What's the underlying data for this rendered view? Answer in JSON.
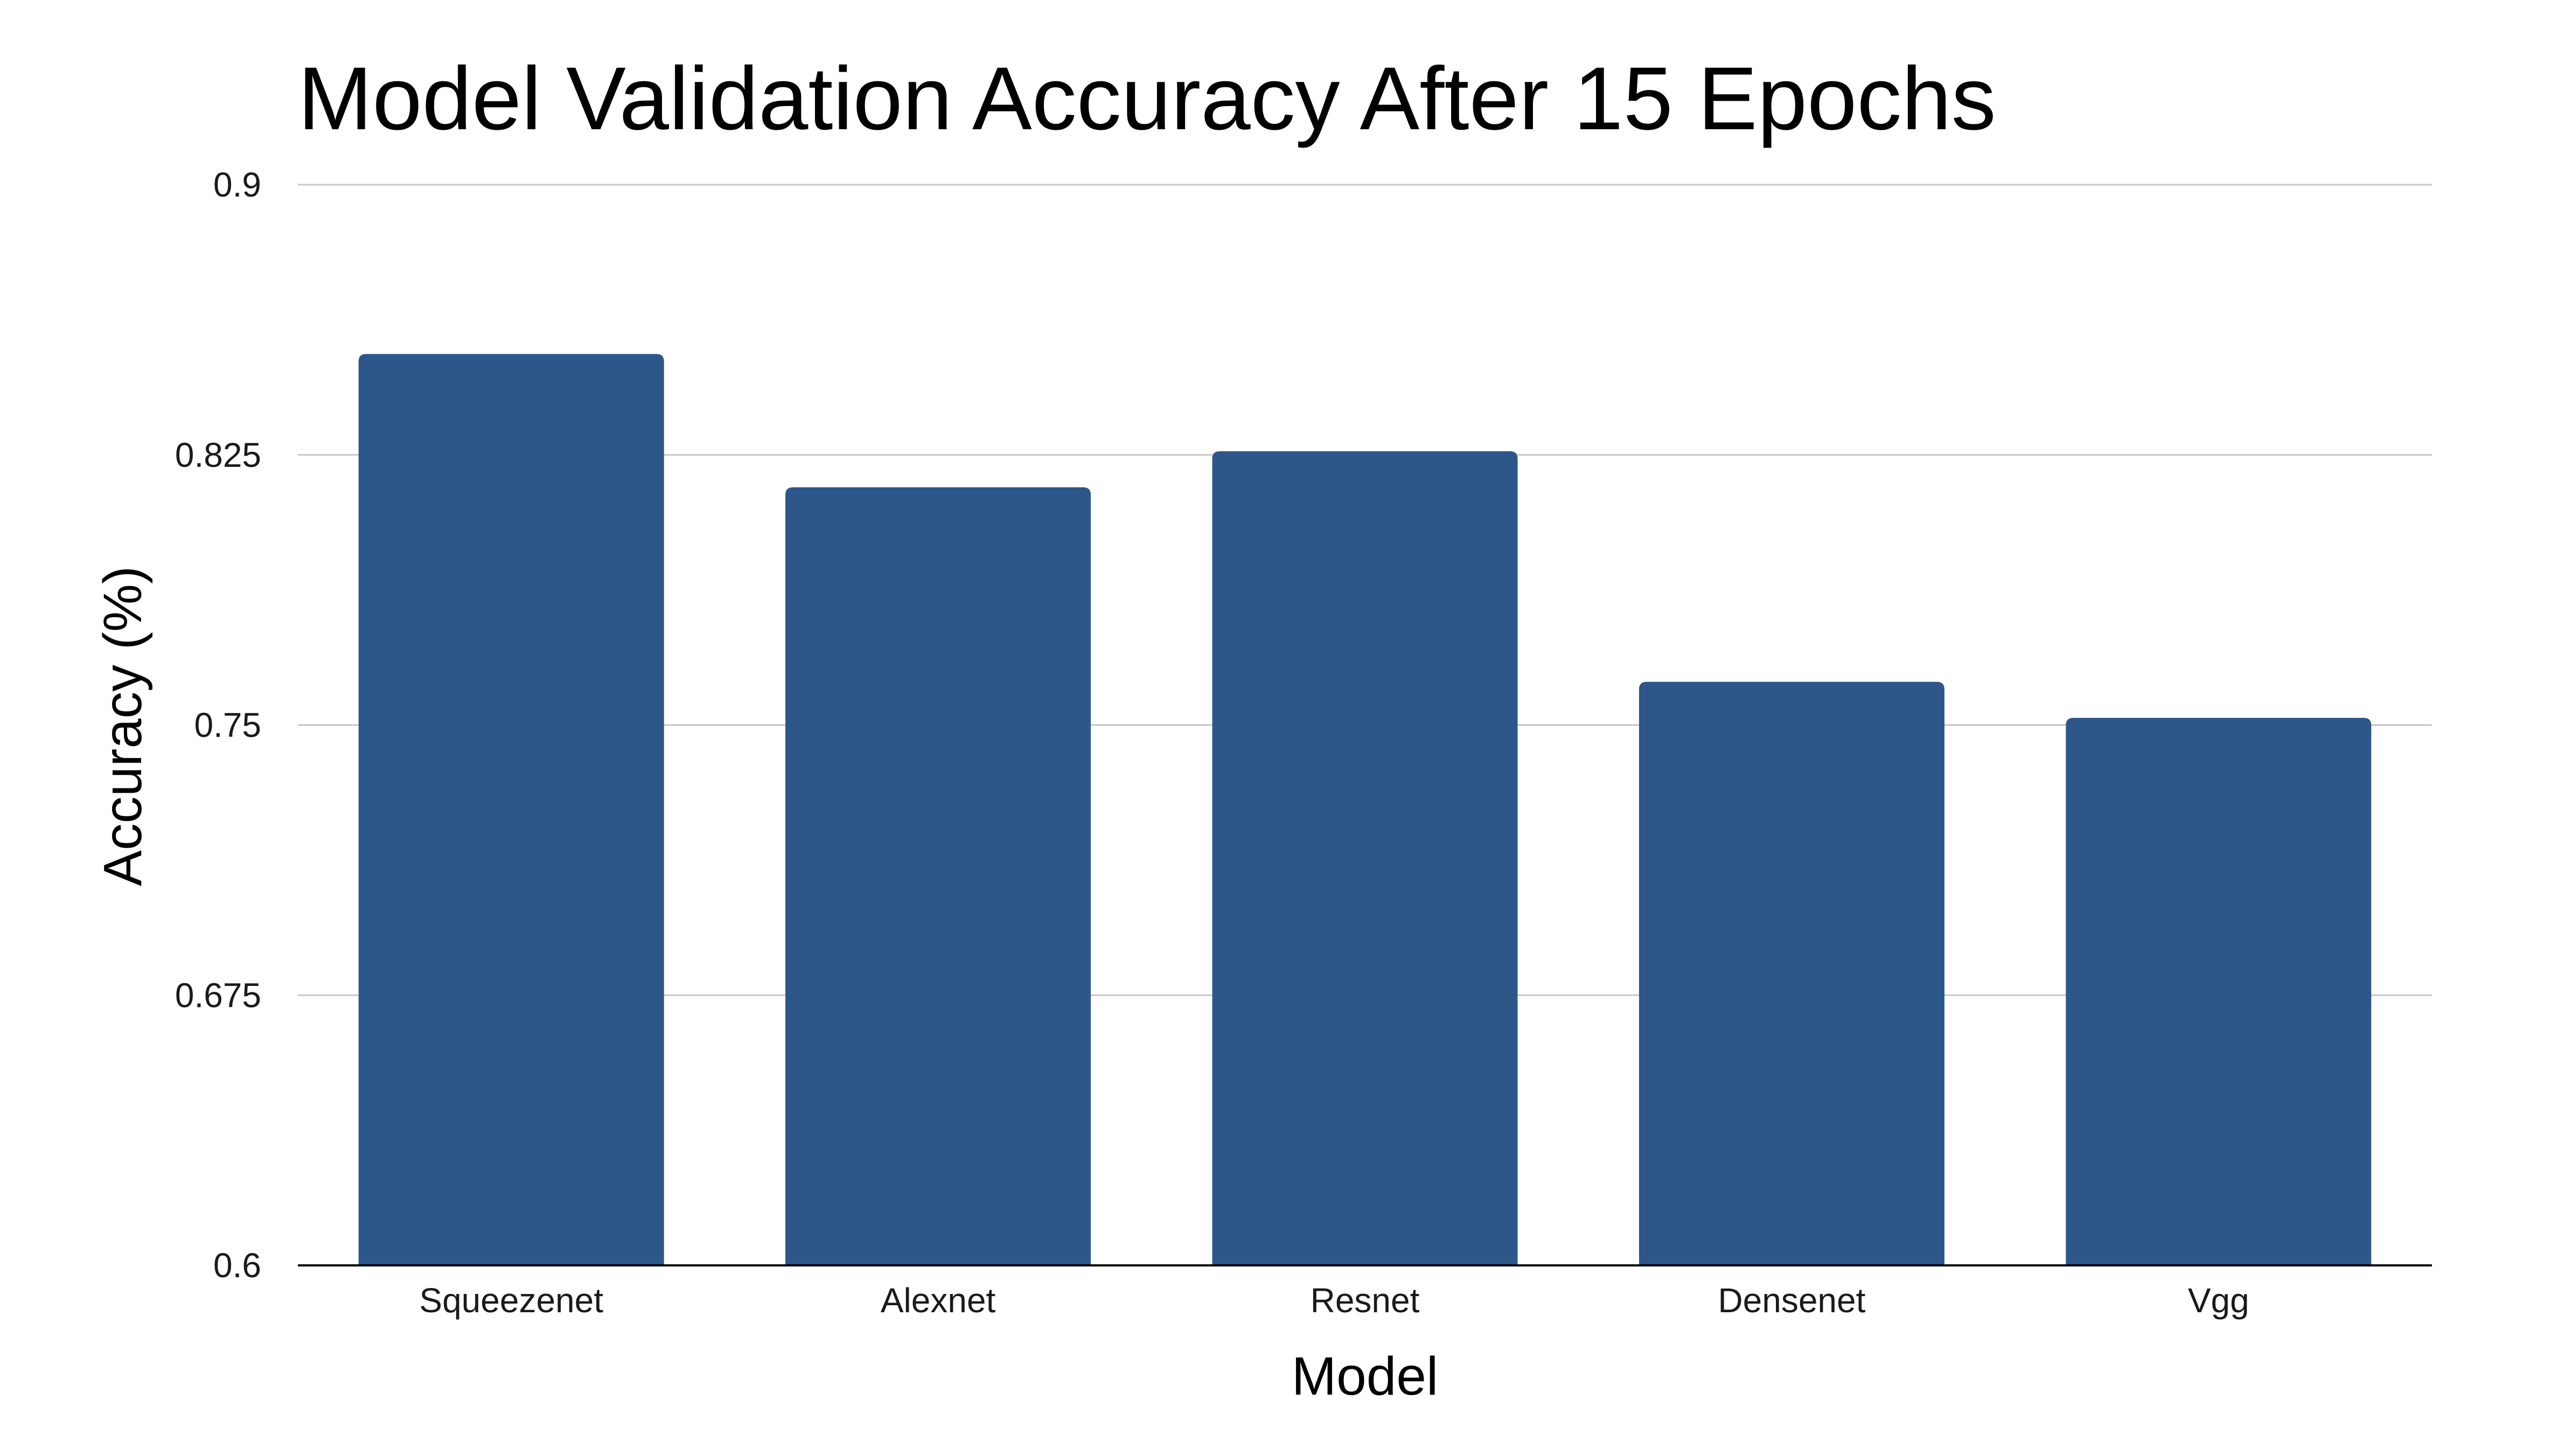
{
  "chart_data": {
    "type": "bar",
    "title": "Model Validation Accuracy After 15 Epochs",
    "xlabel": "Model",
    "ylabel": "Accuracy (%)",
    "categories": [
      "Squeezenet",
      "Alexnet",
      "Resnet",
      "Densenet",
      "Vgg"
    ],
    "values": [
      0.853,
      0.816,
      0.826,
      0.762,
      0.752
    ],
    "ylim": [
      0.6,
      0.9
    ],
    "yticks": [
      "0.6",
      "0.675",
      "0.75",
      "0.825",
      "0.9"
    ],
    "grid": true,
    "legend": "none",
    "bar_color": "#2e5789",
    "grid_color": "#c8c8c8",
    "axis_color": "#000000"
  }
}
